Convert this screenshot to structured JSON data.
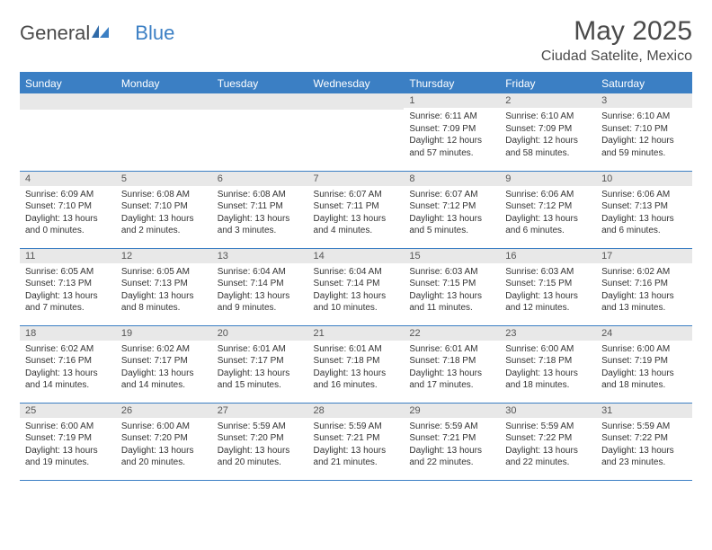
{
  "logo": {
    "text_gray": "General",
    "text_blue": "Blue"
  },
  "header": {
    "title": "May 2025",
    "location": "Ciudad Satelite, Mexico",
    "title_color": "#4a4a4a",
    "title_fontsize": 30,
    "location_fontsize": 16
  },
  "colors": {
    "brand_blue": "#3b7fc4",
    "header_row_bg": "#3b7fc4",
    "header_row_text": "#ffffff",
    "daynum_bg": "#e8e8e8",
    "text_color": "#333333",
    "border_color": "#3b7fc4"
  },
  "days_of_week": [
    "Sunday",
    "Monday",
    "Tuesday",
    "Wednesday",
    "Thursday",
    "Friday",
    "Saturday"
  ],
  "weeks": [
    [
      null,
      null,
      null,
      null,
      {
        "n": "1",
        "sr": "Sunrise: 6:11 AM",
        "ss": "Sunset: 7:09 PM",
        "dla": "Daylight: 12 hours",
        "dlb": "and 57 minutes."
      },
      {
        "n": "2",
        "sr": "Sunrise: 6:10 AM",
        "ss": "Sunset: 7:09 PM",
        "dla": "Daylight: 12 hours",
        "dlb": "and 58 minutes."
      },
      {
        "n": "3",
        "sr": "Sunrise: 6:10 AM",
        "ss": "Sunset: 7:10 PM",
        "dla": "Daylight: 12 hours",
        "dlb": "and 59 minutes."
      }
    ],
    [
      {
        "n": "4",
        "sr": "Sunrise: 6:09 AM",
        "ss": "Sunset: 7:10 PM",
        "dla": "Daylight: 13 hours",
        "dlb": "and 0 minutes."
      },
      {
        "n": "5",
        "sr": "Sunrise: 6:08 AM",
        "ss": "Sunset: 7:10 PM",
        "dla": "Daylight: 13 hours",
        "dlb": "and 2 minutes."
      },
      {
        "n": "6",
        "sr": "Sunrise: 6:08 AM",
        "ss": "Sunset: 7:11 PM",
        "dla": "Daylight: 13 hours",
        "dlb": "and 3 minutes."
      },
      {
        "n": "7",
        "sr": "Sunrise: 6:07 AM",
        "ss": "Sunset: 7:11 PM",
        "dla": "Daylight: 13 hours",
        "dlb": "and 4 minutes."
      },
      {
        "n": "8",
        "sr": "Sunrise: 6:07 AM",
        "ss": "Sunset: 7:12 PM",
        "dla": "Daylight: 13 hours",
        "dlb": "and 5 minutes."
      },
      {
        "n": "9",
        "sr": "Sunrise: 6:06 AM",
        "ss": "Sunset: 7:12 PM",
        "dla": "Daylight: 13 hours",
        "dlb": "and 6 minutes."
      },
      {
        "n": "10",
        "sr": "Sunrise: 6:06 AM",
        "ss": "Sunset: 7:13 PM",
        "dla": "Daylight: 13 hours",
        "dlb": "and 6 minutes."
      }
    ],
    [
      {
        "n": "11",
        "sr": "Sunrise: 6:05 AM",
        "ss": "Sunset: 7:13 PM",
        "dla": "Daylight: 13 hours",
        "dlb": "and 7 minutes."
      },
      {
        "n": "12",
        "sr": "Sunrise: 6:05 AM",
        "ss": "Sunset: 7:13 PM",
        "dla": "Daylight: 13 hours",
        "dlb": "and 8 minutes."
      },
      {
        "n": "13",
        "sr": "Sunrise: 6:04 AM",
        "ss": "Sunset: 7:14 PM",
        "dla": "Daylight: 13 hours",
        "dlb": "and 9 minutes."
      },
      {
        "n": "14",
        "sr": "Sunrise: 6:04 AM",
        "ss": "Sunset: 7:14 PM",
        "dla": "Daylight: 13 hours",
        "dlb": "and 10 minutes."
      },
      {
        "n": "15",
        "sr": "Sunrise: 6:03 AM",
        "ss": "Sunset: 7:15 PM",
        "dla": "Daylight: 13 hours",
        "dlb": "and 11 minutes."
      },
      {
        "n": "16",
        "sr": "Sunrise: 6:03 AM",
        "ss": "Sunset: 7:15 PM",
        "dla": "Daylight: 13 hours",
        "dlb": "and 12 minutes."
      },
      {
        "n": "17",
        "sr": "Sunrise: 6:02 AM",
        "ss": "Sunset: 7:16 PM",
        "dla": "Daylight: 13 hours",
        "dlb": "and 13 minutes."
      }
    ],
    [
      {
        "n": "18",
        "sr": "Sunrise: 6:02 AM",
        "ss": "Sunset: 7:16 PM",
        "dla": "Daylight: 13 hours",
        "dlb": "and 14 minutes."
      },
      {
        "n": "19",
        "sr": "Sunrise: 6:02 AM",
        "ss": "Sunset: 7:17 PM",
        "dla": "Daylight: 13 hours",
        "dlb": "and 14 minutes."
      },
      {
        "n": "20",
        "sr": "Sunrise: 6:01 AM",
        "ss": "Sunset: 7:17 PM",
        "dla": "Daylight: 13 hours",
        "dlb": "and 15 minutes."
      },
      {
        "n": "21",
        "sr": "Sunrise: 6:01 AM",
        "ss": "Sunset: 7:18 PM",
        "dla": "Daylight: 13 hours",
        "dlb": "and 16 minutes."
      },
      {
        "n": "22",
        "sr": "Sunrise: 6:01 AM",
        "ss": "Sunset: 7:18 PM",
        "dla": "Daylight: 13 hours",
        "dlb": "and 17 minutes."
      },
      {
        "n": "23",
        "sr": "Sunrise: 6:00 AM",
        "ss": "Sunset: 7:18 PM",
        "dla": "Daylight: 13 hours",
        "dlb": "and 18 minutes."
      },
      {
        "n": "24",
        "sr": "Sunrise: 6:00 AM",
        "ss": "Sunset: 7:19 PM",
        "dla": "Daylight: 13 hours",
        "dlb": "and 18 minutes."
      }
    ],
    [
      {
        "n": "25",
        "sr": "Sunrise: 6:00 AM",
        "ss": "Sunset: 7:19 PM",
        "dla": "Daylight: 13 hours",
        "dlb": "and 19 minutes."
      },
      {
        "n": "26",
        "sr": "Sunrise: 6:00 AM",
        "ss": "Sunset: 7:20 PM",
        "dla": "Daylight: 13 hours",
        "dlb": "and 20 minutes."
      },
      {
        "n": "27",
        "sr": "Sunrise: 5:59 AM",
        "ss": "Sunset: 7:20 PM",
        "dla": "Daylight: 13 hours",
        "dlb": "and 20 minutes."
      },
      {
        "n": "28",
        "sr": "Sunrise: 5:59 AM",
        "ss": "Sunset: 7:21 PM",
        "dla": "Daylight: 13 hours",
        "dlb": "and 21 minutes."
      },
      {
        "n": "29",
        "sr": "Sunrise: 5:59 AM",
        "ss": "Sunset: 7:21 PM",
        "dla": "Daylight: 13 hours",
        "dlb": "and 22 minutes."
      },
      {
        "n": "30",
        "sr": "Sunrise: 5:59 AM",
        "ss": "Sunset: 7:22 PM",
        "dla": "Daylight: 13 hours",
        "dlb": "and 22 minutes."
      },
      {
        "n": "31",
        "sr": "Sunrise: 5:59 AM",
        "ss": "Sunset: 7:22 PM",
        "dla": "Daylight: 13 hours",
        "dlb": "and 23 minutes."
      }
    ]
  ]
}
